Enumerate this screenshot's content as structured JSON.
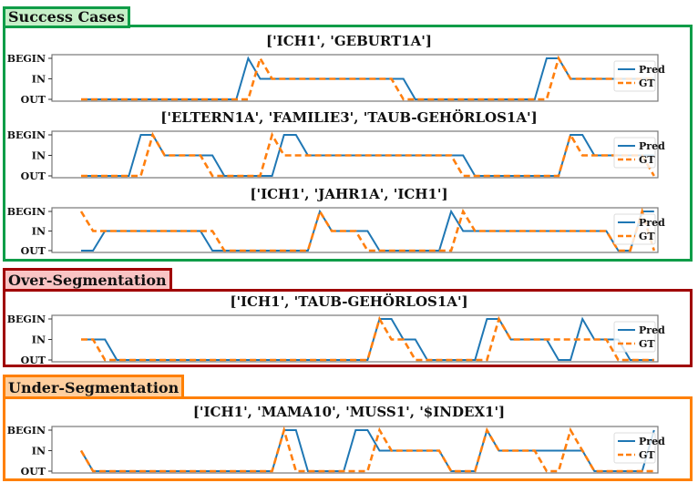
{
  "groups": [
    {
      "label": "Success Cases",
      "border": "#0f9d48",
      "fill": "#c6f0c8"
    },
    {
      "label": "Over-Segmentation",
      "border": "#a00000",
      "fill": "#f9c4c4"
    },
    {
      "label": "Under-Segmentation",
      "border": "#ff8000",
      "fill": "#ffcf9e"
    }
  ],
  "legend": {
    "pred": "Pred",
    "gt": "GT"
  },
  "colors": {
    "pred": "#1f77b4",
    "gt": "#ff7f0e"
  },
  "chart_data": [
    {
      "type": "line",
      "group": "Success Cases",
      "title": "['ICH1', 'GEBURT1A']",
      "yticks": [
        "OUT",
        "IN",
        "BEGIN"
      ],
      "series": [
        {
          "name": "Pred",
          "values": [
            0,
            0,
            0,
            0,
            0,
            0,
            0,
            0,
            0,
            0,
            0,
            0,
            0,
            0,
            2,
            1,
            1,
            1,
            1,
            1,
            1,
            1,
            1,
            1,
            1,
            1,
            1,
            1,
            0,
            0,
            0,
            0,
            0,
            0,
            0,
            0,
            0,
            0,
            0,
            2,
            2,
            1,
            1,
            1,
            1,
            1,
            1,
            1,
            1
          ]
        },
        {
          "name": "GT",
          "values": [
            0,
            0,
            0,
            0,
            0,
            0,
            0,
            0,
            0,
            0,
            0,
            0,
            0,
            0,
            0,
            2,
            1,
            1,
            1,
            1,
            1,
            1,
            1,
            1,
            1,
            1,
            1,
            0,
            0,
            0,
            0,
            0,
            0,
            0,
            0,
            0,
            0,
            0,
            0,
            0,
            2,
            1,
            1,
            1,
            1,
            1,
            1,
            1,
            1
          ]
        }
      ]
    },
    {
      "type": "line",
      "group": "Success Cases",
      "title": "['ELTERN1A', 'FAMILIE3', 'TAUB-GEHÖRLOS1A']",
      "yticks": [
        "OUT",
        "IN",
        "BEGIN"
      ],
      "series": [
        {
          "name": "Pred",
          "values": [
            0,
            0,
            0,
            0,
            0,
            2,
            2,
            1,
            1,
            1,
            1,
            1,
            0,
            0,
            0,
            0,
            0,
            2,
            2,
            1,
            1,
            1,
            1,
            1,
            1,
            1,
            1,
            1,
            1,
            1,
            1,
            1,
            1,
            0,
            0,
            0,
            0,
            0,
            0,
            0,
            0,
            2,
            2,
            1,
            1,
            1,
            1,
            1,
            1
          ]
        },
        {
          "name": "GT",
          "values": [
            0,
            0,
            0,
            0,
            0,
            0,
            2,
            1,
            1,
            1,
            1,
            0,
            0,
            0,
            0,
            0,
            2,
            1,
            1,
            1,
            1,
            1,
            1,
            1,
            1,
            1,
            1,
            1,
            1,
            1,
            1,
            1,
            0,
            0,
            0,
            0,
            0,
            0,
            0,
            0,
            0,
            2,
            1,
            1,
            1,
            1,
            1,
            1,
            0
          ]
        }
      ]
    },
    {
      "type": "line",
      "group": "Success Cases",
      "title": "['ICH1', 'JAHR1A', 'ICH1']",
      "yticks": [
        "OUT",
        "IN",
        "BEGIN"
      ],
      "series": [
        {
          "name": "Pred",
          "values": [
            0,
            0,
            1,
            1,
            1,
            1,
            1,
            1,
            1,
            1,
            1,
            0,
            0,
            0,
            0,
            0,
            0,
            0,
            0,
            0,
            2,
            1,
            1,
            1,
            1,
            0,
            0,
            0,
            0,
            0,
            0,
            2,
            1,
            1,
            1,
            1,
            1,
            1,
            1,
            1,
            1,
            1,
            1,
            1,
            1,
            0,
            0,
            2,
            2
          ]
        },
        {
          "name": "GT",
          "values": [
            2,
            1,
            1,
            1,
            1,
            1,
            1,
            1,
            1,
            1,
            1,
            1,
            0,
            0,
            0,
            0,
            0,
            0,
            0,
            0,
            2,
            1,
            1,
            1,
            0,
            0,
            0,
            0,
            0,
            0,
            0,
            0,
            2,
            1,
            1,
            1,
            1,
            1,
            1,
            1,
            1,
            1,
            1,
            1,
            1,
            0,
            0,
            2,
            0
          ]
        }
      ]
    },
    {
      "type": "line",
      "group": "Over-Segmentation",
      "title": "['ICH1', 'TAUB-GEHÖRLOS1A']",
      "yticks": [
        "OUT",
        "IN",
        "BEGIN"
      ],
      "series": [
        {
          "name": "Pred",
          "values": [
            1,
            1,
            1,
            0,
            0,
            0,
            0,
            0,
            0,
            0,
            0,
            0,
            0,
            0,
            0,
            0,
            0,
            0,
            0,
            0,
            0,
            0,
            0,
            0,
            0,
            2,
            2,
            1,
            1,
            0,
            0,
            0,
            0,
            0,
            2,
            2,
            1,
            1,
            1,
            1,
            0,
            0,
            2,
            1,
            1,
            1,
            0,
            0,
            0
          ]
        },
        {
          "name": "GT",
          "values": [
            1,
            1,
            0,
            0,
            0,
            0,
            0,
            0,
            0,
            0,
            0,
            0,
            0,
            0,
            0,
            0,
            0,
            0,
            0,
            0,
            0,
            0,
            0,
            0,
            0,
            2,
            1,
            1,
            0,
            0,
            0,
            0,
            0,
            0,
            0,
            2,
            1,
            1,
            1,
            1,
            1,
            1,
            1,
            1,
            1,
            0,
            0,
            0,
            0
          ]
        }
      ]
    },
    {
      "type": "line",
      "group": "Under-Segmentation",
      "title": "['ICH1', 'MAMA10', 'MUSS1', '$INDEX1']",
      "yticks": [
        "OUT",
        "IN",
        "BEGIN"
      ],
      "series": [
        {
          "name": "Pred",
          "values": [
            1,
            0,
            0,
            0,
            0,
            0,
            0,
            0,
            0,
            0,
            0,
            0,
            0,
            0,
            0,
            0,
            0,
            2,
            2,
            0,
            0,
            0,
            0,
            2,
            2,
            1,
            1,
            1,
            1,
            1,
            1,
            0,
            0,
            0,
            2,
            1,
            1,
            1,
            1,
            1,
            1,
            1,
            1,
            0,
            0,
            0,
            0,
            0,
            2
          ]
        },
        {
          "name": "GT",
          "values": [
            1,
            0,
            0,
            0,
            0,
            0,
            0,
            0,
            0,
            0,
            0,
            0,
            0,
            0,
            0,
            0,
            0,
            2,
            0,
            0,
            0,
            0,
            0,
            0,
            0,
            2,
            1,
            1,
            1,
            1,
            1,
            0,
            0,
            0,
            2,
            1,
            1,
            1,
            1,
            0,
            0,
            2,
            1,
            0,
            0,
            0,
            0,
            0,
            0
          ]
        }
      ]
    }
  ]
}
